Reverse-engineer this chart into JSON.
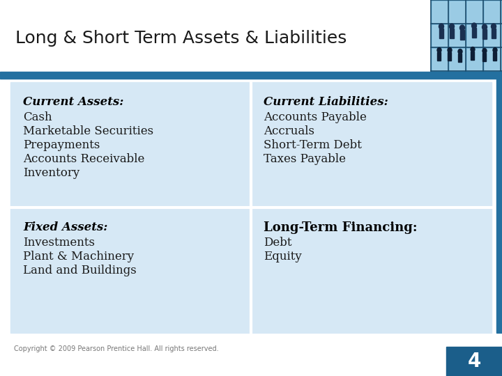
{
  "title": "Long & Short Term Assets & Liabilities",
  "title_fontsize": 18,
  "title_color": "#1a1a1a",
  "background_color": "#ffffff",
  "col1_header": "Current Assets:",
  "col1_items": [
    "Cash",
    "Marketable Securities",
    "Prepayments",
    "Accounts Receivable",
    "Inventory"
  ],
  "col2_header": "Current Liabilities:",
  "col2_items": [
    "Accounts Payable",
    "Accruals",
    "Short-Term Debt",
    "Taxes Payable"
  ],
  "col3_header": "Fixed Assets:",
  "col3_items": [
    "Investments",
    "Plant & Machinery",
    "Land and Buildings"
  ],
  "col4_header": "Long-Term Financing:",
  "col4_items": [
    "Debt",
    "Equity"
  ],
  "footer_text": "Copyright © 2009 Pearson Prentice Hall. All rights reserved.",
  "footer_fontsize": 7,
  "page_number": "4",
  "dark_blue": "#1b5e8a",
  "medium_blue": "#2470a0",
  "light_blue_bg": "#d6e8f5",
  "body_text_size": 12,
  "header_text_size": 12,
  "lterm_header_size": 13
}
